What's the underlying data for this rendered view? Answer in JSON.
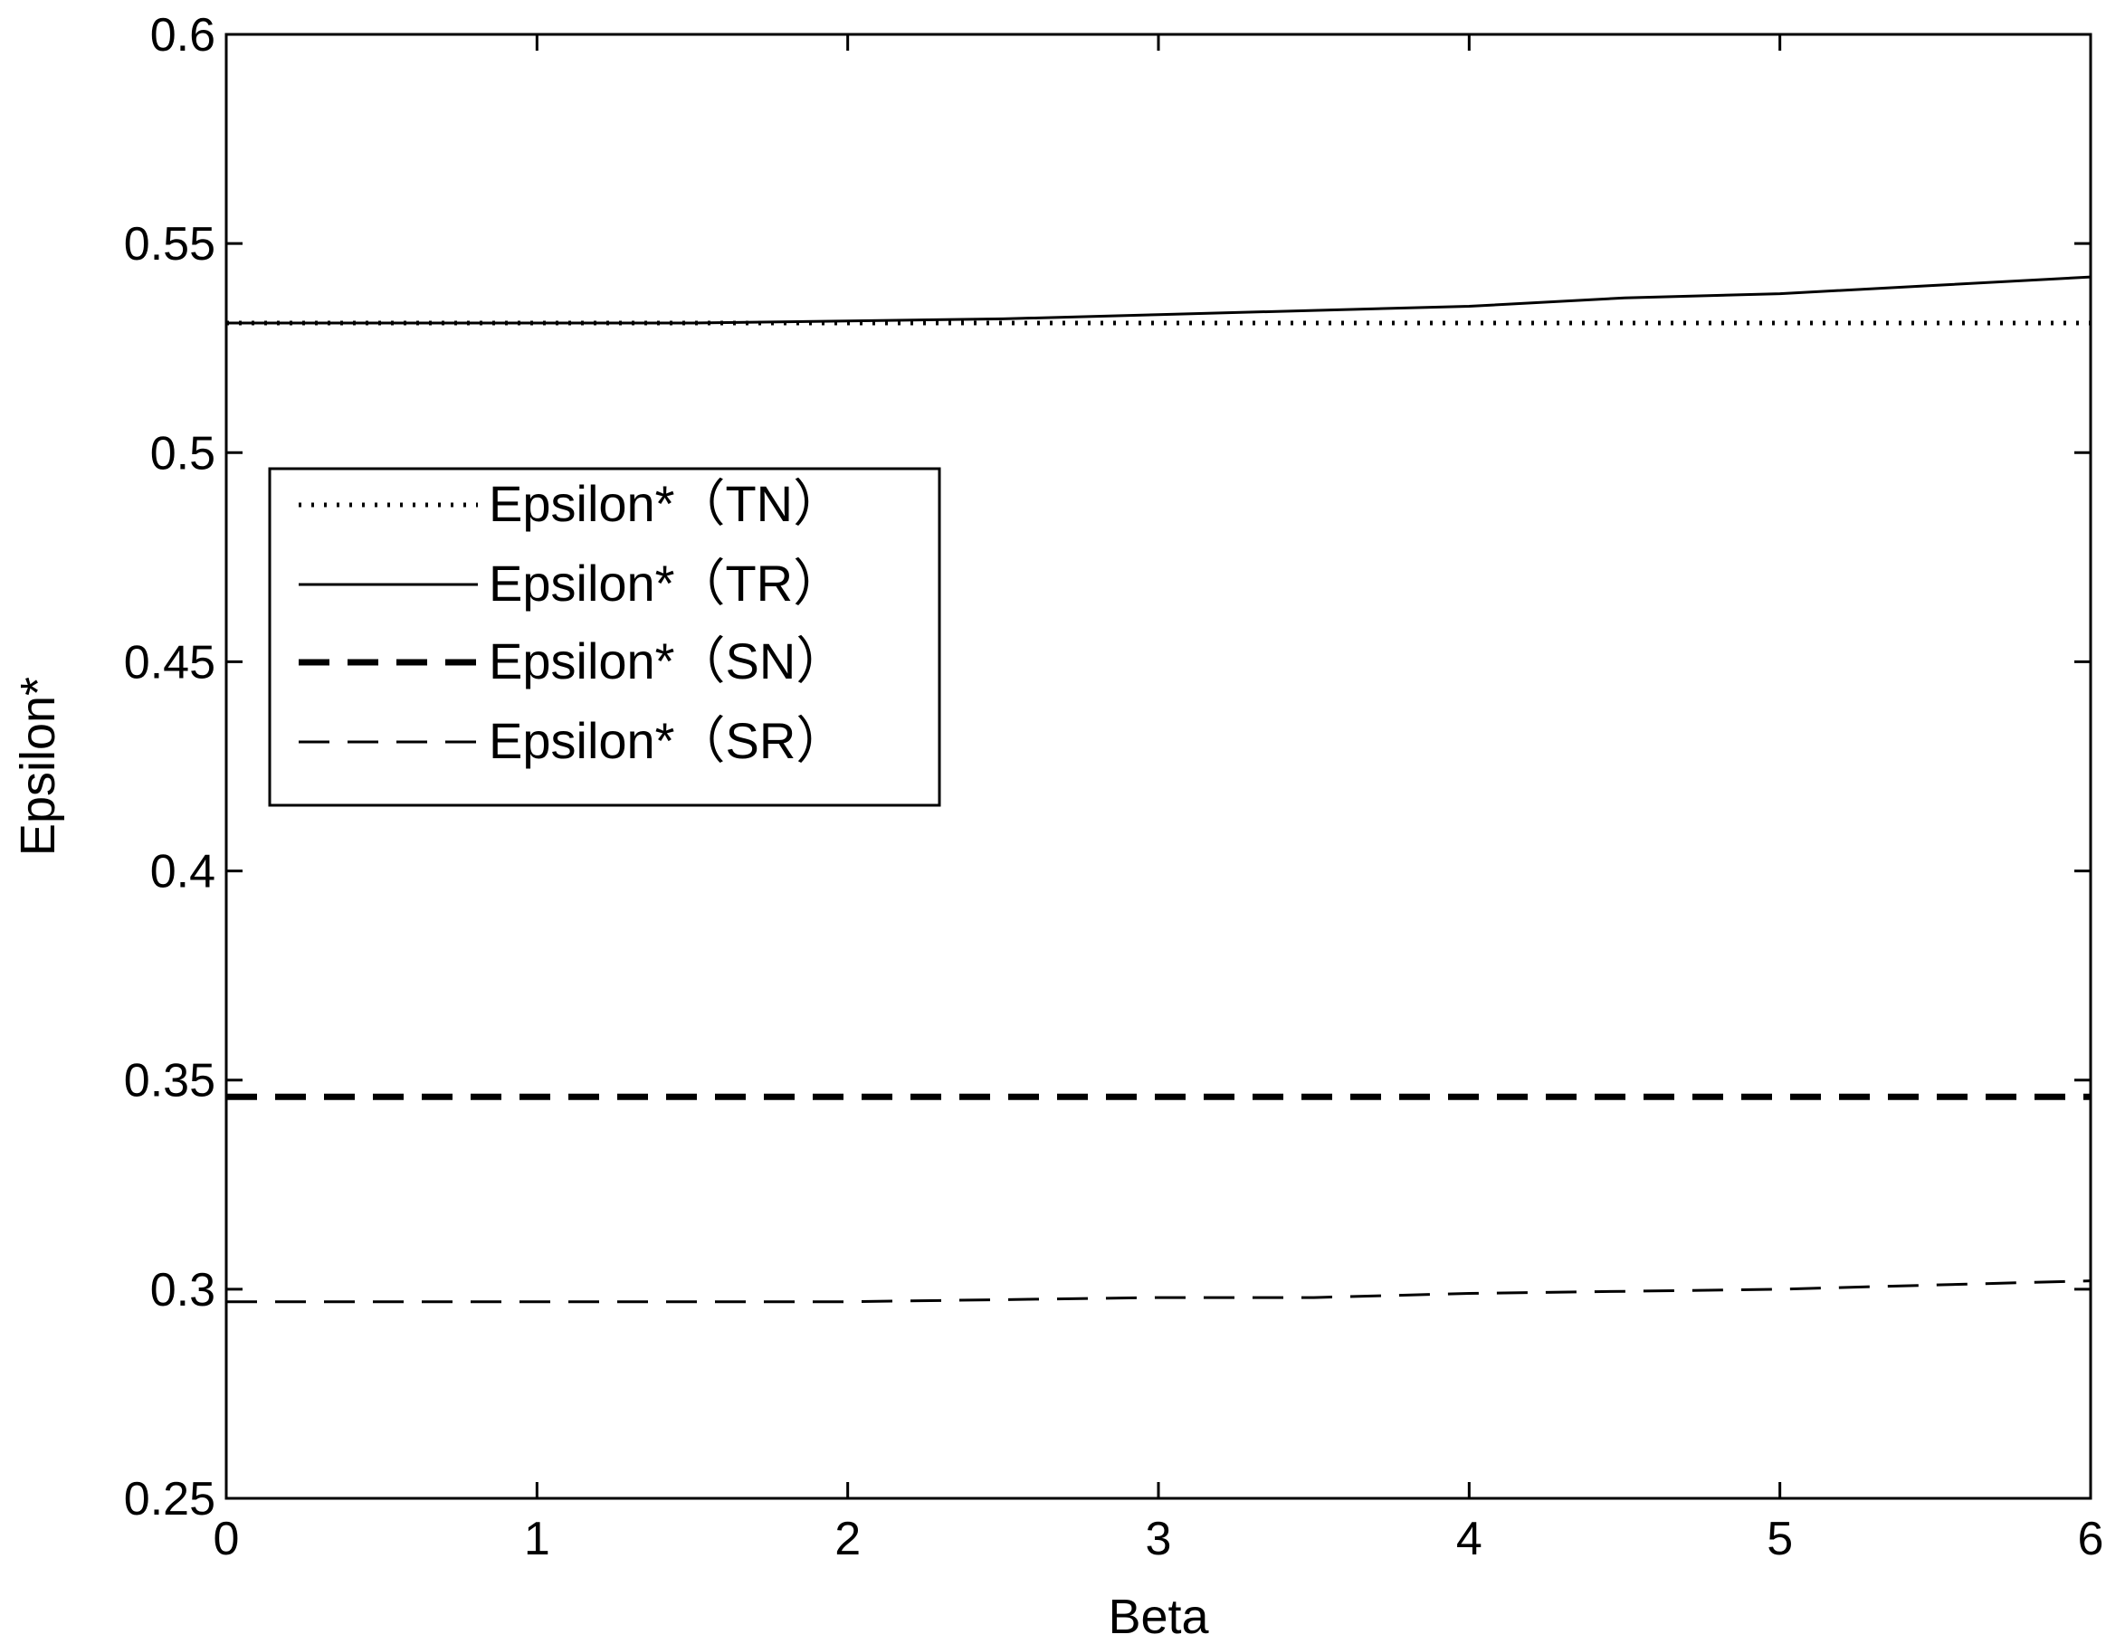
{
  "chart_data": {
    "type": "line",
    "xlabel": "Beta",
    "ylabel": "Epsilon*",
    "xlim": [
      0,
      6
    ],
    "ylim": [
      0.25,
      0.6
    ],
    "xticks": [
      "0",
      "1",
      "2",
      "3",
      "4",
      "5",
      "6"
    ],
    "yticks": [
      "0.25",
      "0.3",
      "0.35",
      "0.4",
      "0.45",
      "0.5",
      "0.55",
      "0.6"
    ],
    "grid": false,
    "legend_position": "upper-left",
    "x": [
      0,
      0.5,
      1,
      1.5,
      2,
      2.5,
      3,
      3.5,
      4,
      4.5,
      5,
      5.5,
      6
    ],
    "series": [
      {
        "name": "Epsilon*（TN）",
        "style": "dotted",
        "color": "#000000",
        "values": [
          0.531,
          0.531,
          0.531,
          0.531,
          0.531,
          0.531,
          0.531,
          0.531,
          0.531,
          0.531,
          0.531,
          0.531,
          0.531
        ]
      },
      {
        "name": "Epsilon*（TR）",
        "style": "solid",
        "color": "#000000",
        "values": [
          0.531,
          0.531,
          0.531,
          0.531,
          0.5315,
          0.532,
          0.533,
          0.534,
          0.535,
          0.537,
          0.538,
          0.54,
          0.542
        ]
      },
      {
        "name": "Epsilon*（SN）",
        "style": "thick-dashed",
        "color": "#000000",
        "values": [
          0.346,
          0.346,
          0.346,
          0.346,
          0.346,
          0.346,
          0.346,
          0.346,
          0.346,
          0.346,
          0.346,
          0.346,
          0.346
        ]
      },
      {
        "name": "Epsilon*（SR）",
        "style": "dashed",
        "color": "#000000",
        "values": [
          0.297,
          0.297,
          0.297,
          0.297,
          0.297,
          0.2975,
          0.298,
          0.298,
          0.299,
          0.2995,
          0.3,
          0.301,
          0.302
        ]
      }
    ]
  }
}
